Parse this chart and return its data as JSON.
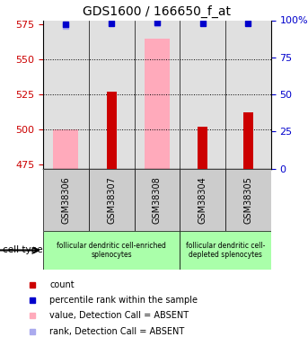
{
  "title": "GDS1600 / 166650_f_at",
  "samples": [
    "GSM38306",
    "GSM38307",
    "GSM38308",
    "GSM38304",
    "GSM38305"
  ],
  "count_values": [
    null,
    527,
    null,
    502,
    512
  ],
  "pink_bar_values": [
    500,
    null,
    565,
    null,
    null
  ],
  "blue_square_pct": [
    97,
    98,
    98.5,
    98,
    98
  ],
  "light_blue_square_pct": [
    96,
    null,
    98,
    null,
    null
  ],
  "ylim_left": [
    472,
    578
  ],
  "ylim_right": [
    0,
    100
  ],
  "yticks_left": [
    475,
    500,
    525,
    550,
    575
  ],
  "yticks_right": [
    0,
    25,
    50,
    75,
    100
  ],
  "ytick_right_labels": [
    "0",
    "25",
    "50",
    "75",
    "100%"
  ],
  "dotted_lines": [
    500,
    525,
    550
  ],
  "count_color": "#cc0000",
  "pink_color": "#ffaabb",
  "blue_color": "#0000cc",
  "light_blue_color": "#aaaaee",
  "bg_color": "#cccccc",
  "left_tick_color": "#cc0000",
  "right_tick_color": "#0000cc",
  "group1_samples": [
    0,
    1,
    2
  ],
  "group1_label": "follicular dendritic cell-enriched\nsplenocytes",
  "group1_color": "#aaffaa",
  "group2_samples": [
    3,
    4
  ],
  "group2_label": "follicular dendritic cell-\ndepleted splenocytes",
  "group2_color": "#aaffaa",
  "legend_items": [
    {
      "label": "count",
      "color": "#cc0000"
    },
    {
      "label": "percentile rank within the sample",
      "color": "#0000cc"
    },
    {
      "label": "value, Detection Call = ABSENT",
      "color": "#ffaabb"
    },
    {
      "label": "rank, Detection Call = ABSENT",
      "color": "#aaaaee"
    }
  ]
}
